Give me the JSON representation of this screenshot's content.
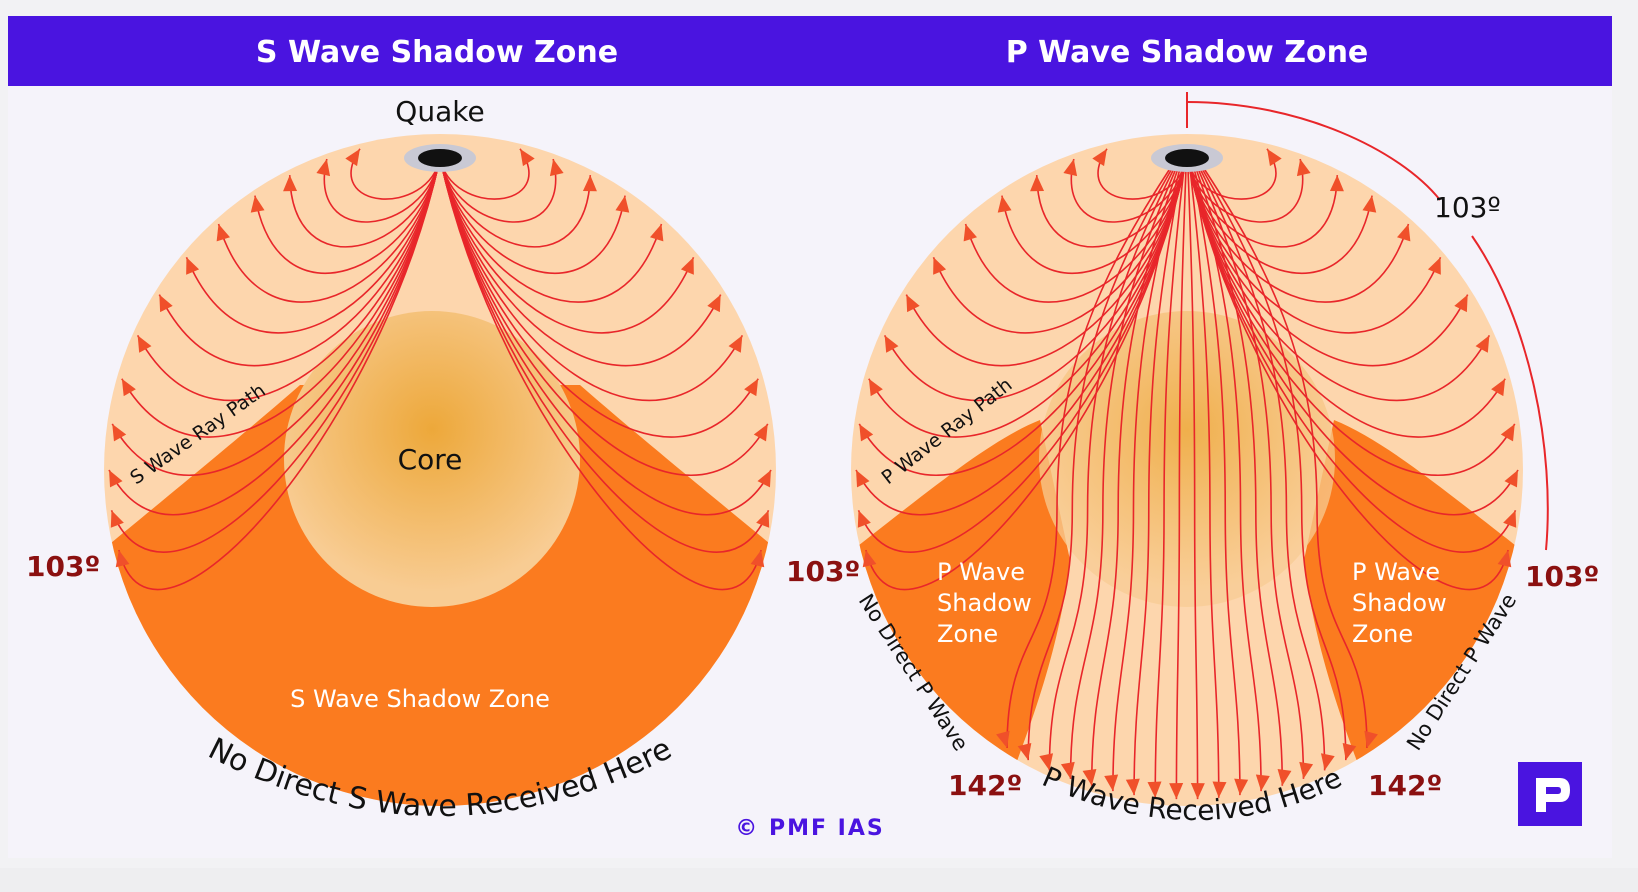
{
  "colors": {
    "header": "#4a14e0",
    "panel": "#f5f3fa",
    "page": "#f2f2f4",
    "mantle": "#fdd6ad",
    "shadow": "#fb7b1f",
    "core_center": "#eda83a",
    "core_edge": "#f8cc93",
    "ray": "#e8262a",
    "degree_label": "#8b1010",
    "logo": "#4a14e0"
  },
  "left": {
    "header": "S Wave Shadow Zone",
    "quake_label": "Quake",
    "core_label": "Core",
    "ray_path_label": "S Wave Ray Path",
    "shadow_zone_label": "S Wave Shadow Zone",
    "bottom_label": "No Direct S Wave Received Here",
    "degree_left": "103º"
  },
  "right": {
    "header": "P Wave Shadow Zone",
    "ray_path_label": "P Wave Ray Path",
    "angle_label": "103º",
    "degree_left": "103º",
    "degree_right": "103º",
    "degree_bottom_left": "142º",
    "degree_bottom_right": "142º",
    "shadow_zone_left": [
      "P Wave",
      "Shadow",
      "Zone"
    ],
    "shadow_zone_right": [
      "P Wave",
      "Shadow",
      "Zone"
    ],
    "no_direct_left": "No Direct P Wave",
    "no_direct_right": "No Direct P Wave",
    "bottom_label": "P Wave Received Here"
  },
  "copyright": "© PMF IAS",
  "logo_icon": "pmf-logo-icon"
}
